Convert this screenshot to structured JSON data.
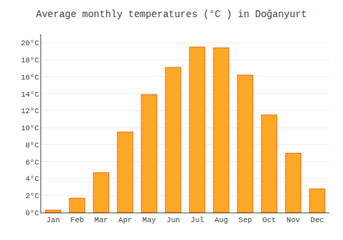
{
  "chart_data": {
    "type": "bar",
    "title": "Average monthly temperatures (°C ) in Doğanyurt",
    "categories": [
      "Jan",
      "Feb",
      "Mar",
      "Apr",
      "May",
      "Jun",
      "Jul",
      "Aug",
      "Sep",
      "Oct",
      "Nov",
      "Dec"
    ],
    "values": [
      0.3,
      1.7,
      4.7,
      9.5,
      13.9,
      17.1,
      19.5,
      19.4,
      16.2,
      11.5,
      7.0,
      2.8
    ],
    "color": "#FFA726",
    "ylim": [
      0,
      21
    ],
    "yticks": [
      {
        "value": 0,
        "label": "0°C"
      },
      {
        "value": 2,
        "label": "2°C"
      },
      {
        "value": 4,
        "label": "4°C"
      },
      {
        "value": 6,
        "label": "6°C"
      },
      {
        "value": 8,
        "label": "8°C"
      },
      {
        "value": 10,
        "label": "10°C"
      },
      {
        "value": 12,
        "label": "12°C"
      },
      {
        "value": 14,
        "label": "14°C"
      },
      {
        "value": 16,
        "label": "16°C"
      },
      {
        "value": 18,
        "label": "18°C"
      },
      {
        "value": 20,
        "label": "20°C"
      }
    ],
    "grid": true
  }
}
